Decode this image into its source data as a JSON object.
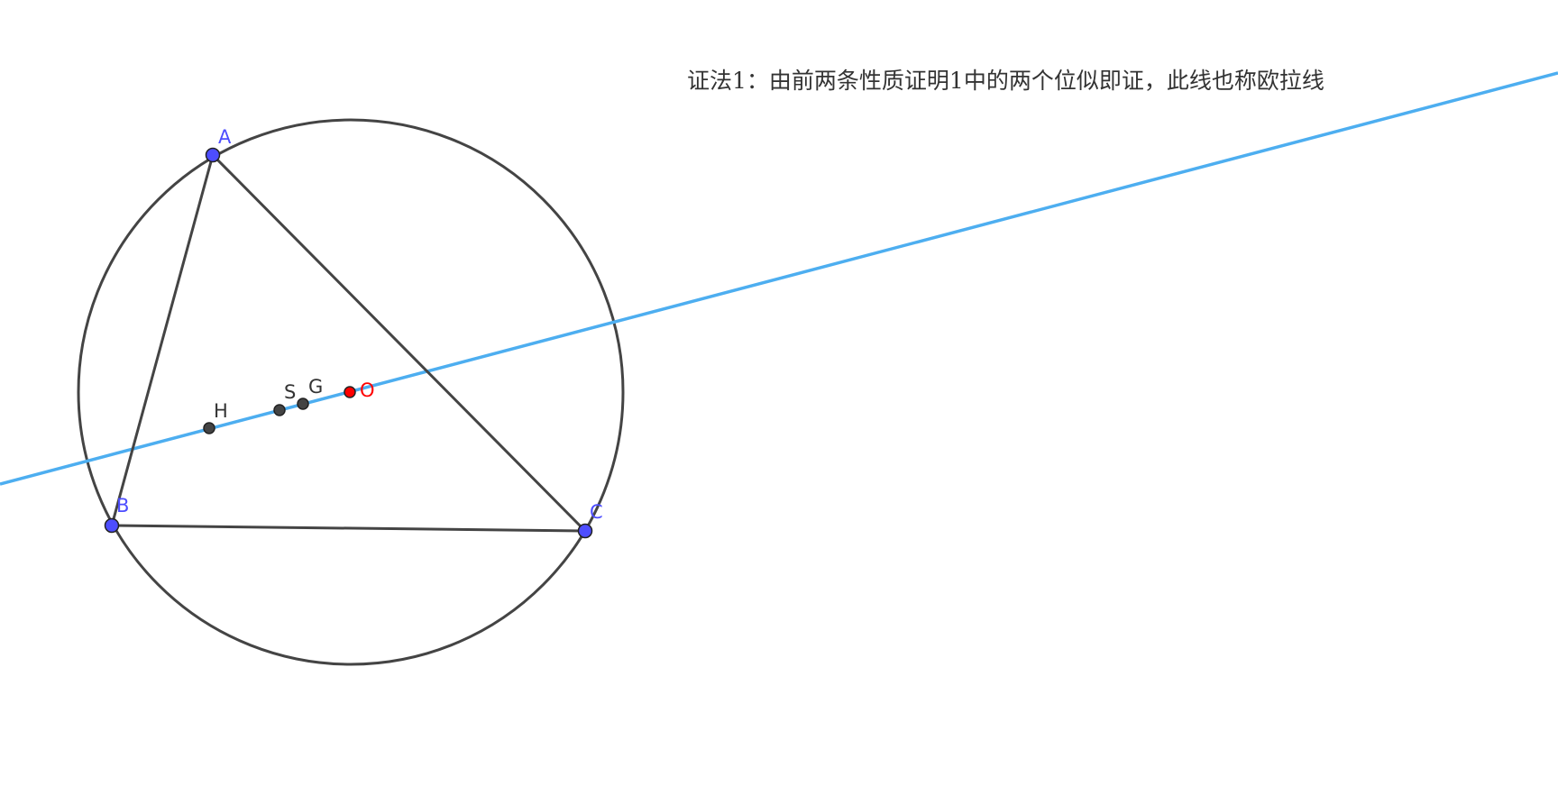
{
  "caption": "证法1：由前两条性质证明1中的两个位似即证，此线也称欧拉线",
  "points": {
    "A": {
      "label": "A"
    },
    "B": {
      "label": "B"
    },
    "C": {
      "label": "C"
    },
    "H": {
      "label": "H"
    },
    "S": {
      "label": "S"
    },
    "G": {
      "label": "G"
    },
    "O": {
      "label": "O"
    }
  },
  "colors": {
    "vertex_point": "#4d4dff",
    "vertex_label": "#4d4dff",
    "center_point": "#ff0000",
    "center_label": "#ff0000",
    "aux_point": "#444444",
    "aux_label": "#333333",
    "segment": "#444444",
    "circle": "#444444",
    "euler_line": "#4daef0"
  }
}
